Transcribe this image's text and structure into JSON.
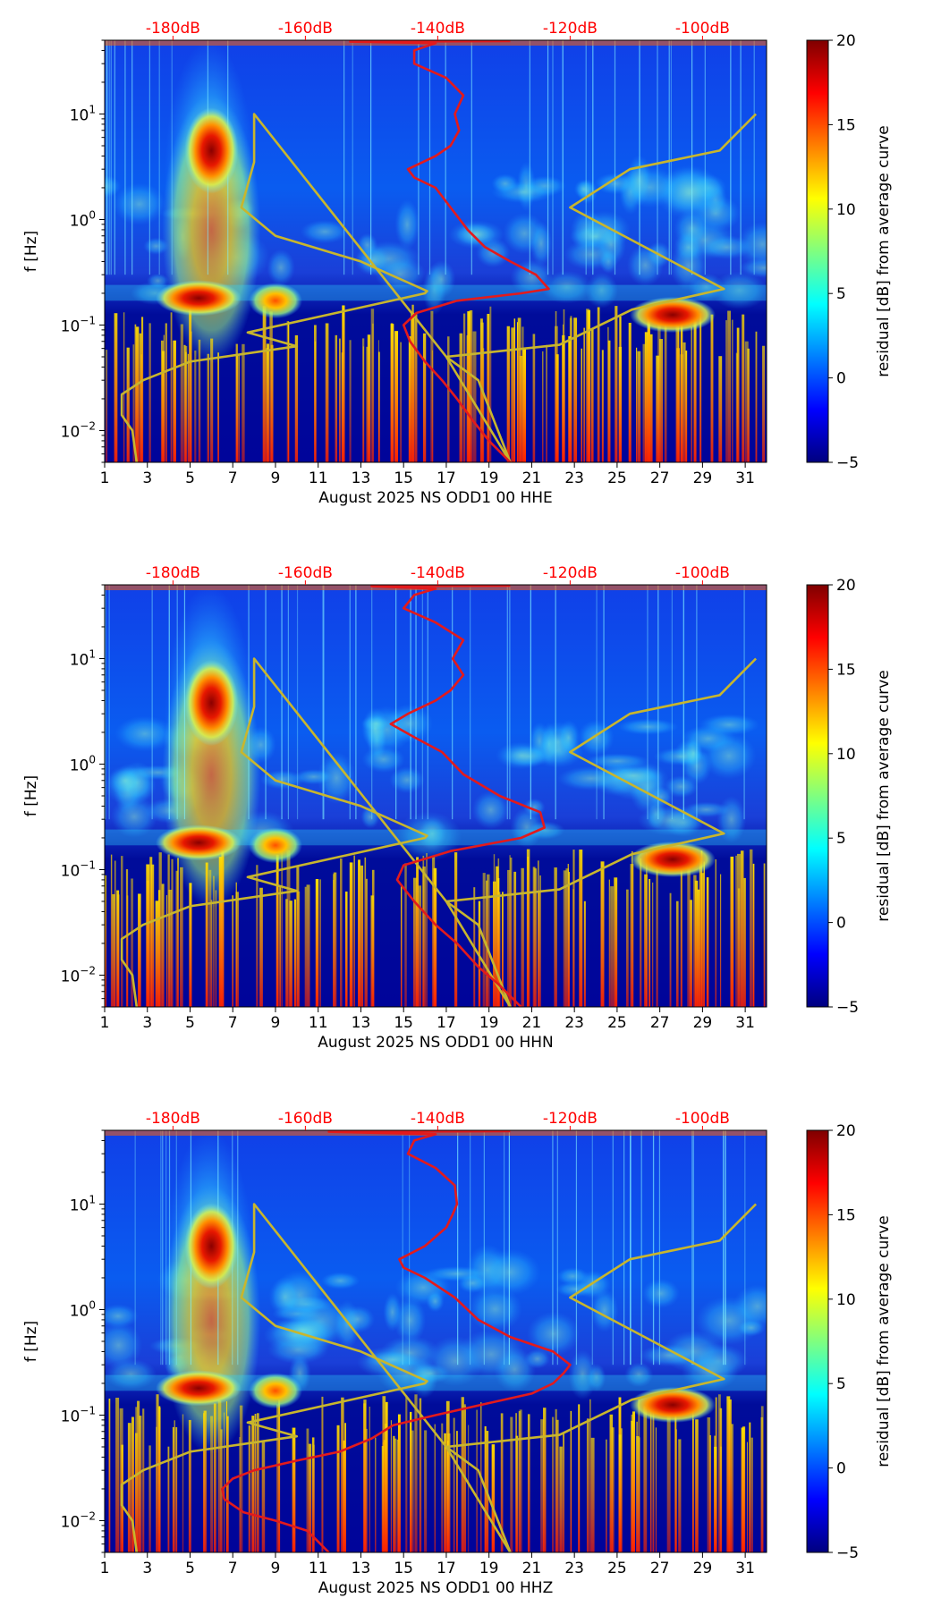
{
  "chart_data": [
    {
      "type": "heatmap",
      "xlabel": "August 2025 NS ODD1 00 HHE",
      "ylabel": "f [Hz]",
      "xlim": [
        1,
        32
      ],
      "ylim": [
        0.005,
        50
      ],
      "yscale": "log",
      "x_ticks": [
        "1",
        "3",
        "5",
        "7",
        "9",
        "11",
        "13",
        "15",
        "17",
        "19",
        "21",
        "23",
        "25",
        "27",
        "29",
        "31"
      ],
      "y_ticks": [
        {
          "value": 0.01,
          "base": "10",
          "exp": "−2"
        },
        {
          "value": 0.1,
          "base": "10",
          "exp": "−1"
        },
        {
          "value": 1,
          "base": "10",
          "exp": "0"
        },
        {
          "value": 10,
          "base": "10",
          "exp": "1"
        }
      ],
      "top_axis": {
        "color": "#ff0000",
        "labels": [
          "-180dB",
          "-160dB",
          "-140dB",
          "-120dB",
          "-100dB"
        ],
        "day_positions": [
          4.2,
          10.4,
          16.6,
          22.8,
          29.0
        ]
      },
      "colorbar": {
        "label": "residual [dB] from average curve",
        "min": -5,
        "max": 20,
        "ticks": [
          "20",
          "15",
          "10",
          "5",
          "0",
          "−5"
        ]
      },
      "red_curve": [
        [
          20,
          0.005
        ],
        [
          19,
          0.008
        ],
        [
          18.3,
          0.012
        ],
        [
          17.5,
          0.02
        ],
        [
          16.8,
          0.03
        ],
        [
          16,
          0.045
        ],
        [
          15.3,
          0.07
        ],
        [
          15,
          0.1
        ],
        [
          15.6,
          0.13
        ],
        [
          17.5,
          0.17
        ],
        [
          20.5,
          0.2
        ],
        [
          21.8,
          0.22
        ],
        [
          21.2,
          0.3
        ],
        [
          20,
          0.4
        ],
        [
          18.8,
          0.55
        ],
        [
          18,
          0.8
        ],
        [
          17.2,
          1.3
        ],
        [
          16.5,
          2
        ],
        [
          15.5,
          2.5
        ],
        [
          15.2,
          3
        ],
        [
          16.5,
          4
        ],
        [
          17.2,
          5
        ],
        [
          17.6,
          7
        ],
        [
          17.4,
          10
        ],
        [
          17.8,
          15
        ],
        [
          17,
          22
        ],
        [
          15.5,
          30
        ],
        [
          15.5,
          40
        ],
        [
          16.5,
          47
        ],
        [
          12.5,
          48.5
        ],
        [
          20,
          49
        ]
      ],
      "yellow_curve": [
        [
          2.5,
          0.005
        ],
        [
          2.3,
          0.01
        ],
        [
          1.8,
          0.014
        ],
        [
          1.8,
          0.022
        ],
        [
          2.8,
          0.03
        ],
        [
          5,
          0.045
        ],
        [
          10,
          0.063
        ],
        [
          7.7,
          0.085
        ],
        [
          16,
          0.2
        ],
        [
          16.1,
          0.21
        ],
        [
          13,
          0.4
        ],
        [
          9,
          0.7
        ],
        [
          7.4,
          1.3
        ],
        [
          8,
          3.5
        ],
        [
          8,
          10
        ],
        [
          17,
          0.05
        ],
        [
          18.5,
          0.03
        ],
        [
          20,
          0.005
        ],
        [
          17,
          0.05
        ],
        [
          22.3,
          0.065
        ],
        [
          25.7,
          0.14
        ],
        [
          30,
          0.22
        ],
        [
          22.8,
          1.3
        ],
        [
          25.6,
          3
        ],
        [
          29.8,
          4.5
        ],
        [
          31.5,
          10
        ]
      ],
      "hot_spots": [
        {
          "day": 5.4,
          "f": 0.18
        },
        {
          "day": 6,
          "f": 4.5
        },
        {
          "day": 27.6,
          "f": 0.125
        },
        {
          "day": 9,
          "f": 0.17
        }
      ]
    },
    {
      "type": "heatmap",
      "xlabel": "August 2025 NS ODD1 00 HHN",
      "ylabel": "f [Hz]",
      "xlim": [
        1,
        32
      ],
      "ylim": [
        0.005,
        50
      ],
      "yscale": "log",
      "x_ticks": [
        "1",
        "3",
        "5",
        "7",
        "9",
        "11",
        "13",
        "15",
        "17",
        "19",
        "21",
        "23",
        "25",
        "27",
        "29",
        "31"
      ],
      "y_ticks": [
        {
          "value": 0.01,
          "base": "10",
          "exp": "−2"
        },
        {
          "value": 0.1,
          "base": "10",
          "exp": "−1"
        },
        {
          "value": 1,
          "base": "10",
          "exp": "0"
        },
        {
          "value": 10,
          "base": "10",
          "exp": "1"
        }
      ],
      "top_axis": {
        "color": "#ff0000",
        "labels": [
          "-180dB",
          "-160dB",
          "-140dB",
          "-120dB",
          "-100dB"
        ],
        "day_positions": [
          4.2,
          10.4,
          16.6,
          22.8,
          29.0
        ]
      },
      "colorbar": {
        "label": "residual [dB] from average curve",
        "min": -5,
        "max": 20,
        "ticks": [
          "20",
          "15",
          "10",
          "5",
          "0",
          "−5"
        ]
      },
      "red_curve": [
        [
          20.5,
          0.005
        ],
        [
          19.5,
          0.008
        ],
        [
          18.5,
          0.012
        ],
        [
          17.5,
          0.02
        ],
        [
          16.5,
          0.03
        ],
        [
          15.5,
          0.05
        ],
        [
          14.7,
          0.08
        ],
        [
          15,
          0.11
        ],
        [
          17.2,
          0.15
        ],
        [
          20.5,
          0.2
        ],
        [
          21.6,
          0.25
        ],
        [
          21.4,
          0.35
        ],
        [
          19.5,
          0.5
        ],
        [
          17.8,
          0.8
        ],
        [
          16.8,
          1.3
        ],
        [
          15.5,
          1.8
        ],
        [
          14.4,
          2.4
        ],
        [
          15.2,
          3
        ],
        [
          16.5,
          4
        ],
        [
          17.2,
          5
        ],
        [
          17.8,
          7
        ],
        [
          17.3,
          10
        ],
        [
          17.8,
          15
        ],
        [
          16.5,
          22
        ],
        [
          15,
          30
        ],
        [
          15.5,
          40
        ],
        [
          16.5,
          46
        ],
        [
          13.5,
          48.5
        ],
        [
          20,
          49
        ]
      ],
      "yellow_curve": [
        [
          2.5,
          0.005
        ],
        [
          2.3,
          0.01
        ],
        [
          1.8,
          0.014
        ],
        [
          1.8,
          0.022
        ],
        [
          2.8,
          0.03
        ],
        [
          5,
          0.045
        ],
        [
          10,
          0.063
        ],
        [
          7.7,
          0.085
        ],
        [
          16,
          0.2
        ],
        [
          16.1,
          0.21
        ],
        [
          13,
          0.4
        ],
        [
          9,
          0.7
        ],
        [
          7.4,
          1.3
        ],
        [
          8,
          3.5
        ],
        [
          8,
          10
        ],
        [
          17,
          0.05
        ],
        [
          18.5,
          0.03
        ],
        [
          20,
          0.005
        ],
        [
          17,
          0.05
        ],
        [
          22.3,
          0.065
        ],
        [
          25.7,
          0.14
        ],
        [
          30,
          0.22
        ],
        [
          22.8,
          1.3
        ],
        [
          25.6,
          3
        ],
        [
          29.8,
          4.5
        ],
        [
          31.5,
          10
        ]
      ],
      "hot_spots": [
        {
          "day": 5.4,
          "f": 0.18
        },
        {
          "day": 6,
          "f": 3.8
        },
        {
          "day": 27.6,
          "f": 0.125
        },
        {
          "day": 9,
          "f": 0.17
        }
      ]
    },
    {
      "type": "heatmap",
      "xlabel": "August 2025 NS ODD1 00 HHZ",
      "ylabel": "f [Hz]",
      "xlim": [
        1,
        32
      ],
      "ylim": [
        0.005,
        50
      ],
      "yscale": "log",
      "x_ticks": [
        "1",
        "3",
        "5",
        "7",
        "9",
        "11",
        "13",
        "15",
        "17",
        "19",
        "21",
        "23",
        "25",
        "27",
        "29",
        "31"
      ],
      "y_ticks": [
        {
          "value": 0.01,
          "base": "10",
          "exp": "−2"
        },
        {
          "value": 0.1,
          "base": "10",
          "exp": "−1"
        },
        {
          "value": 1,
          "base": "10",
          "exp": "0"
        },
        {
          "value": 10,
          "base": "10",
          "exp": "1"
        }
      ],
      "top_axis": {
        "color": "#ff0000",
        "labels": [
          "-180dB",
          "-160dB",
          "-140dB",
          "-120dB",
          "-100dB"
        ],
        "day_positions": [
          4.2,
          10.4,
          16.6,
          22.8,
          29.0
        ]
      },
      "colorbar": {
        "label": "residual [dB] from average curve",
        "min": -5,
        "max": 20,
        "ticks": [
          "20",
          "15",
          "10",
          "5",
          "0",
          "−5"
        ]
      },
      "red_curve": [
        [
          11.5,
          0.005
        ],
        [
          10.5,
          0.008
        ],
        [
          9,
          0.01
        ],
        [
          7.5,
          0.012
        ],
        [
          6.6,
          0.016
        ],
        [
          6.5,
          0.02
        ],
        [
          7,
          0.025
        ],
        [
          8,
          0.03
        ],
        [
          10,
          0.037
        ],
        [
          12,
          0.045
        ],
        [
          13.5,
          0.06
        ],
        [
          14.5,
          0.08
        ],
        [
          16.5,
          0.1
        ],
        [
          19,
          0.13
        ],
        [
          21,
          0.16
        ],
        [
          22,
          0.2
        ],
        [
          22.5,
          0.25
        ],
        [
          22.8,
          0.3
        ],
        [
          22,
          0.4
        ],
        [
          20,
          0.55
        ],
        [
          18.5,
          0.8
        ],
        [
          17.4,
          1.3
        ],
        [
          16,
          2
        ],
        [
          15,
          2.5
        ],
        [
          14.8,
          3
        ],
        [
          16,
          4
        ],
        [
          17,
          6
        ],
        [
          17.3,
          8
        ],
        [
          17.5,
          10
        ],
        [
          17.4,
          15
        ],
        [
          16.5,
          22
        ],
        [
          15.2,
          30
        ],
        [
          15.5,
          40
        ],
        [
          16.5,
          46
        ],
        [
          11.5,
          48.5
        ],
        [
          20,
          49
        ]
      ],
      "yellow_curve": [
        [
          2.5,
          0.005
        ],
        [
          2.3,
          0.01
        ],
        [
          1.8,
          0.014
        ],
        [
          1.8,
          0.022
        ],
        [
          2.8,
          0.03
        ],
        [
          5,
          0.045
        ],
        [
          10,
          0.063
        ],
        [
          7.7,
          0.085
        ],
        [
          16,
          0.2
        ],
        [
          16.1,
          0.21
        ],
        [
          13,
          0.4
        ],
        [
          9,
          0.7
        ],
        [
          7.4,
          1.3
        ],
        [
          8,
          3.5
        ],
        [
          8,
          10
        ],
        [
          17,
          0.05
        ],
        [
          18.5,
          0.03
        ],
        [
          20,
          0.005
        ],
        [
          17,
          0.05
        ],
        [
          22.3,
          0.065
        ],
        [
          25.7,
          0.14
        ],
        [
          30,
          0.22
        ],
        [
          22.8,
          1.3
        ],
        [
          25.6,
          3
        ],
        [
          29.8,
          4.5
        ],
        [
          31.5,
          10
        ]
      ],
      "hot_spots": [
        {
          "day": 5.4,
          "f": 0.18
        },
        {
          "day": 6,
          "f": 4
        },
        {
          "day": 27.6,
          "f": 0.125
        },
        {
          "day": 9,
          "f": 0.17
        }
      ]
    }
  ],
  "colors": {
    "red_curve": "#e31a1c",
    "yellow_curve": "#c8b62d",
    "top_label": "#ff0000"
  }
}
